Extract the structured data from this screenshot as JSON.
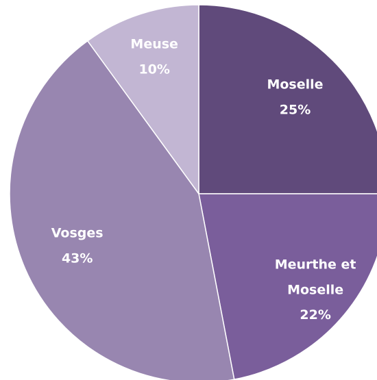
{
  "chart_data": {
    "type": "pie",
    "categories": [
      "Moselle",
      "Meurthe et Moselle",
      "Vosges",
      "Meuse"
    ],
    "values": [
      25,
      22,
      43,
      10
    ],
    "value_labels": [
      "25%",
      "22%",
      "43%",
      "10%"
    ],
    "colors": [
      "#604a7b",
      "#7a5e9b",
      "#9886b0",
      "#c2b6d3"
    ]
  }
}
